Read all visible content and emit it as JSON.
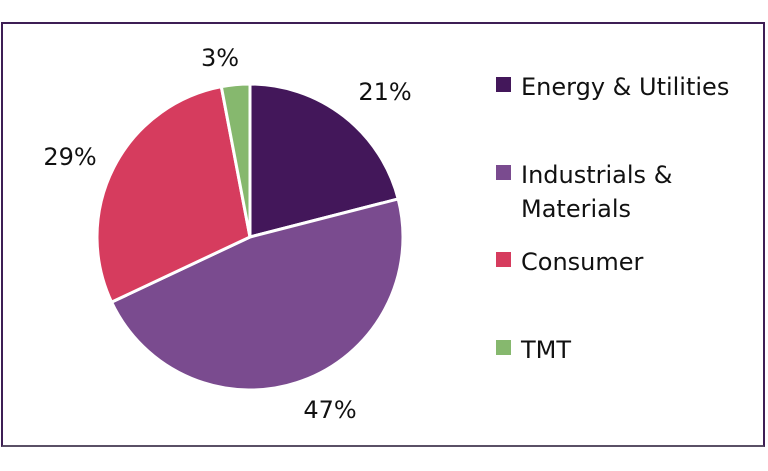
{
  "chart_data": {
    "type": "pie",
    "title": "",
    "categories": [
      "Energy & Utilities",
      "Industrials & Materials",
      "Consumer",
      "TMT"
    ],
    "values": [
      21,
      47,
      29,
      3
    ],
    "labels": [
      "21%",
      "47%",
      "29%",
      "3%"
    ],
    "colors": [
      "#43175a",
      "#7a4b8f",
      "#d63c5e",
      "#86b86e"
    ],
    "start": "top",
    "direction": "clockwise",
    "legend_placement": "right"
  }
}
